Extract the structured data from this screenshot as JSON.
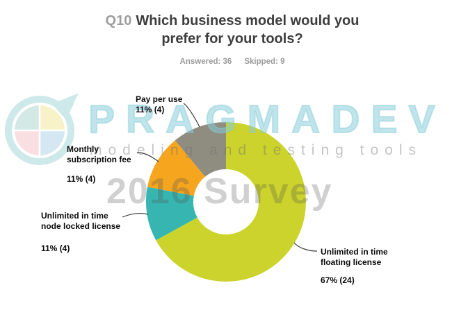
{
  "title": {
    "prefix": "Q10",
    "text": "Which business model would you prefer for your tools?"
  },
  "stats": {
    "answered": "Answered: 36",
    "skipped": "Skipped: 9"
  },
  "watermark": {
    "brand": "PRAGMADEV",
    "tagline": "modeling and testing tools",
    "survey": "2016 Survey",
    "brand_color": "#c9e8ef",
    "logo_colors": {
      "ring": "#cee9ea",
      "quadrant_top_left": "#d2e9e6",
      "quadrant_top_right": "#f7f2c8",
      "quadrant_bottom_right": "#d5e7f3",
      "quadrant_bottom_left": "#fadfe2"
    }
  },
  "chart_data": {
    "type": "pie",
    "subtype": "donut",
    "title": "Q10 Which business model would you prefer for your tools?",
    "answered": 36,
    "skipped": 9,
    "start_angle_deg": 0,
    "direction": "clockwise",
    "hole_ratio": 0.41,
    "legend_position": "callouts",
    "slices": [
      {
        "id": "floating",
        "label": "Unlimited in time floating license",
        "pct": 67,
        "count": 24,
        "color": "#cbd32c"
      },
      {
        "id": "node_locked",
        "label": "Unlimited in time node locked license",
        "pct": 11,
        "count": 4,
        "color": "#37b6b1"
      },
      {
        "id": "monthly",
        "label": "Monthly subscription fee",
        "pct": 11,
        "count": 4,
        "color": "#f5a51e"
      },
      {
        "id": "pay_per_use",
        "label": "Pay per use",
        "pct": 11,
        "count": 4,
        "color": "#8f8d7f"
      }
    ]
  },
  "labels": {
    "pay_per_use": {
      "line1": "Pay per use",
      "value": "11% (4)"
    },
    "monthly": {
      "line1": "Monthly",
      "line2": "subscription fee",
      "value": "11% (4)"
    },
    "node_locked": {
      "line1": "Unlimited in time",
      "line2": "node locked license",
      "value": "11% (4)"
    },
    "floating": {
      "line1": "Unlimited in time",
      "line2": "floating license",
      "value": "67% (24)"
    }
  }
}
